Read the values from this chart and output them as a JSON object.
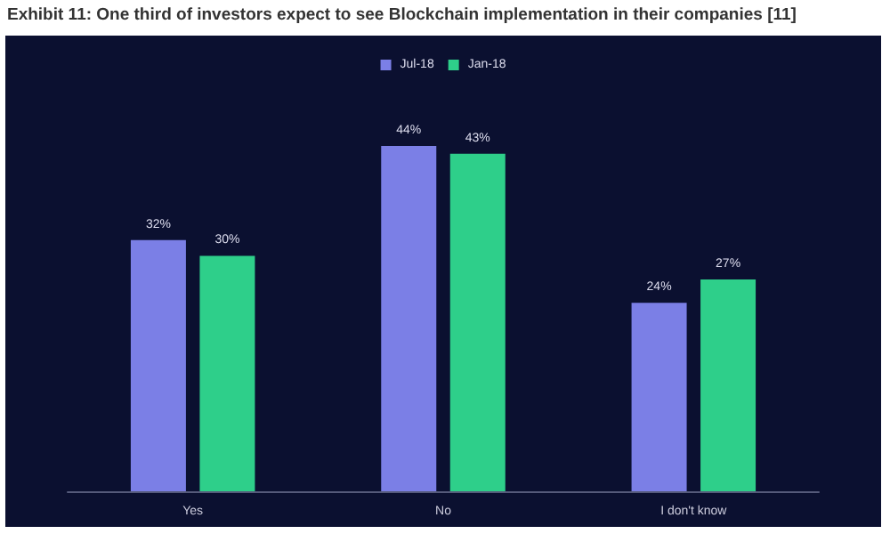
{
  "chart_data": {
    "type": "bar",
    "title": "Exhibit 11: One third of investors expect to see Blockchain implementation in their companies [11]",
    "categories": [
      "Yes",
      "No",
      "I don't know"
    ],
    "series": [
      {
        "name": "Jul-18",
        "color": "#7b7fe6",
        "values": [
          32,
          44,
          24
        ],
        "value_labels": [
          "32%",
          "44%",
          "24%"
        ]
      },
      {
        "name": "Jan-18",
        "color": "#2ecf8a",
        "values": [
          30,
          43,
          27
        ],
        "value_labels": [
          "30%",
          "43%",
          "27%"
        ]
      }
    ],
    "legend": "top"
  }
}
